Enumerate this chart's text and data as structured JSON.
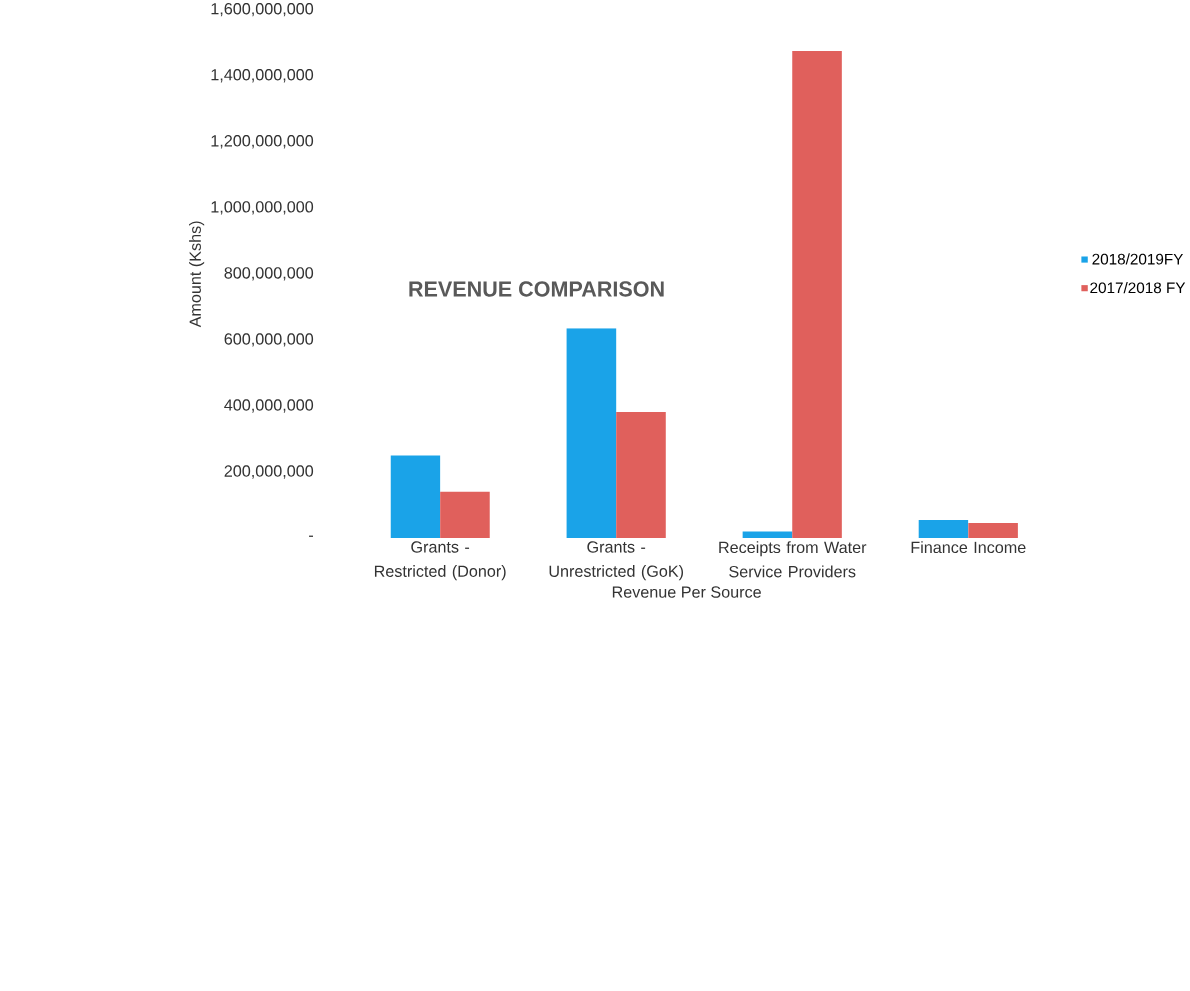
{
  "chart_data": {
    "type": "bar",
    "title": "REVENUE COMPARISON",
    "xlabel": "Revenue Per Source",
    "ylabel": "Amount (Kshs)",
    "categories": [
      "Grants - Restricted (Donor)",
      "Grants - Unrestricted (GoK)",
      "Receipts from Water Service Providers",
      "Finance Income"
    ],
    "series": [
      {
        "name": "2018/2019FY",
        "color": "#1aa3e8",
        "values": [
          250000000,
          635000000,
          20000000,
          55000000
        ]
      },
      {
        "name": "2017/2018 FY",
        "color": "#e0605c",
        "values": [
          140000000,
          382000000,
          1475000000,
          46000000
        ]
      }
    ],
    "ylim": [
      0,
      1600000000
    ],
    "yticks": [
      {
        "value": 0,
        "label": "-"
      },
      {
        "value": 200000000,
        "label": "200,000,000"
      },
      {
        "value": 400000000,
        "label": "400,000,000"
      },
      {
        "value": 600000000,
        "label": "600,000,000"
      },
      {
        "value": 800000000,
        "label": "800,000,000"
      },
      {
        "value": 1000000000,
        "label": "1,000,000,000"
      },
      {
        "value": 1200000000,
        "label": "1,200,000,000"
      },
      {
        "value": 1400000000,
        "label": "1,400,000,000"
      },
      {
        "value": 1600000000,
        "label": "1,600,000,000"
      }
    ],
    "legend": "right"
  }
}
